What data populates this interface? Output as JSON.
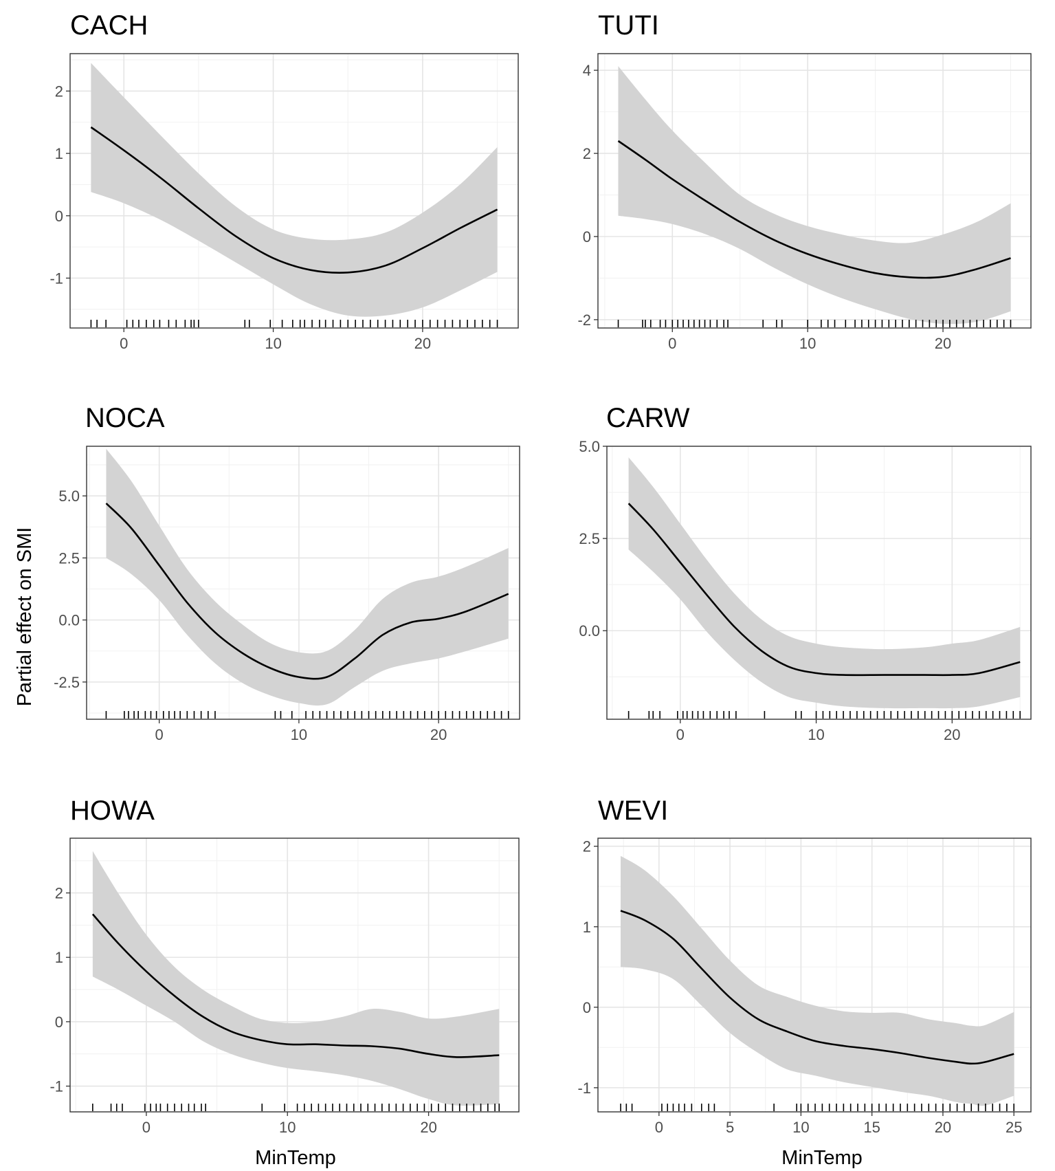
{
  "chart_data": [
    {
      "type": "line",
      "title": "CACH",
      "xlabel": "",
      "ylabel": "",
      "xlim": [
        -3.6,
        26.4
      ],
      "ylim": [
        -1.8,
        2.6
      ],
      "xticks": [
        0,
        10,
        20
      ],
      "yticks": [
        -1,
        0,
        1,
        2
      ],
      "ytick_labels": [
        "-1",
        "0",
        "1",
        "2"
      ],
      "x": [
        -2.2,
        0,
        2.5,
        5,
        7.5,
        10,
        12.5,
        15,
        17.5,
        20,
        22.5,
        25
      ],
      "fit": [
        1.42,
        1.05,
        0.6,
        0.12,
        -0.33,
        -0.68,
        -0.87,
        -0.91,
        -0.8,
        -0.52,
        -0.2,
        0.1
      ],
      "lower": [
        0.38,
        0.2,
        -0.07,
        -0.4,
        -0.75,
        -1.1,
        -1.42,
        -1.6,
        -1.6,
        -1.47,
        -1.2,
        -0.9
      ],
      "upper": [
        2.45,
        1.9,
        1.28,
        0.68,
        0.15,
        -0.22,
        -0.37,
        -0.38,
        -0.27,
        0.05,
        0.5,
        1.1
      ],
      "rug": [
        -2.2,
        -1.8,
        -1.2,
        0.2,
        0.6,
        1.0,
        1.5,
        2.0,
        2.4,
        3.0,
        3.5,
        4.1,
        4.5,
        4.7,
        5.0,
        8.1,
        8.4,
        9.8,
        10.6,
        11.3,
        11.8,
        12.1,
        12.6,
        13.1,
        13.5,
        14.0,
        14.5,
        15.0,
        15.5,
        16.0,
        16.5,
        17.0,
        17.5,
        18.0,
        18.5,
        19.0,
        19.5,
        20.0,
        20.5,
        21.0,
        21.5,
        22.0,
        22.5,
        23.0,
        23.5,
        24.0,
        24.5,
        25.0
      ]
    },
    {
      "type": "line",
      "title": "TUTI",
      "xlabel": "",
      "ylabel": "",
      "xlim": [
        -5.5,
        26.5
      ],
      "ylim": [
        -2.2,
        4.4
      ],
      "xticks": [
        0,
        10,
        20
      ],
      "yticks": [
        -2,
        0,
        2,
        4
      ],
      "ytick_labels": [
        "-2",
        "0",
        "2",
        "4"
      ],
      "x": [
        -4,
        -2,
        0,
        2.5,
        5,
        7.5,
        10,
        12.5,
        15,
        17.5,
        20,
        22.5,
        25
      ],
      "fit": [
        2.3,
        1.85,
        1.38,
        0.85,
        0.35,
        -0.08,
        -0.42,
        -0.68,
        -0.88,
        -0.98,
        -0.97,
        -0.78,
        -0.52
      ],
      "lower": [
        0.5,
        0.42,
        0.3,
        0.05,
        -0.3,
        -0.75,
        -1.15,
        -1.48,
        -1.75,
        -1.98,
        -2.1,
        -2.05,
        -1.8
      ],
      "upper": [
        4.1,
        3.3,
        2.55,
        1.75,
        1.0,
        0.55,
        0.25,
        0.05,
        -0.1,
        -0.15,
        0.05,
        0.35,
        0.8
      ],
      "rug": [
        -4.0,
        -2.2,
        -2.0,
        -1.6,
        -0.9,
        -0.5,
        0.0,
        0.4,
        0.8,
        1.2,
        1.6,
        2.0,
        2.4,
        2.8,
        3.3,
        3.8,
        4.1,
        6.7,
        7.7,
        8.1,
        10.0,
        11.0,
        11.5,
        12.0,
        12.8,
        13.5,
        14.0,
        14.5,
        15.0,
        15.5,
        16.0,
        16.5,
        17.0,
        17.5,
        18.0,
        18.5,
        19.0,
        19.5,
        20.0,
        20.5,
        21.0,
        21.5,
        22.0,
        22.5,
        23.0,
        23.5,
        24.0,
        24.5,
        25.0
      ]
    },
    {
      "type": "line",
      "title": "NOCA",
      "xlabel": "",
      "ylabel": "Partial effect on SMI",
      "xlim": [
        -5.2,
        25.8
      ],
      "ylim": [
        -4,
        7
      ],
      "xticks": [
        0,
        10,
        20
      ],
      "yticks": [
        -2.5,
        0,
        2.5,
        5
      ],
      "ytick_labels": [
        "-2.5",
        "0.0",
        "2.5",
        "5.0"
      ],
      "x": [
        -3.8,
        -2,
        0,
        2,
        4,
        6,
        8,
        10,
        12,
        14,
        16,
        18,
        20,
        22,
        25
      ],
      "fit": [
        4.7,
        3.7,
        2.2,
        0.7,
        -0.5,
        -1.35,
        -1.95,
        -2.3,
        -2.3,
        -1.55,
        -0.6,
        -0.1,
        0.05,
        0.35,
        1.05
      ],
      "lower": [
        2.5,
        1.85,
        0.8,
        -0.6,
        -1.75,
        -2.55,
        -3.05,
        -3.35,
        -3.4,
        -2.7,
        -2.05,
        -1.75,
        -1.55,
        -1.25,
        -0.75
      ],
      "upper": [
        6.9,
        5.6,
        3.8,
        2.05,
        0.75,
        -0.2,
        -0.95,
        -1.3,
        -1.25,
        -0.4,
        0.85,
        1.5,
        1.75,
        2.15,
        2.9
      ],
      "rug": [
        -3.8,
        -2.5,
        -2.2,
        -1.8,
        -1.5,
        -1.0,
        -0.6,
        -0.2,
        0.3,
        0.7,
        1.1,
        1.5,
        2.0,
        2.5,
        3.0,
        3.5,
        4.0,
        8.3,
        8.7,
        9.5,
        10.5,
        11.0,
        11.5,
        12.0,
        12.5,
        13.0,
        13.5,
        14.0,
        14.5,
        15.0,
        15.5,
        16.0,
        16.5,
        17.0,
        17.5,
        18.0,
        18.5,
        19.0,
        19.5,
        20.0,
        20.5,
        21.0,
        21.5,
        22.0,
        22.5,
        23.0,
        23.5,
        24.0,
        24.5,
        25.0
      ]
    },
    {
      "type": "line",
      "title": "CARW",
      "xlabel": "",
      "ylabel": "",
      "xlim": [
        -5.4,
        25.8
      ],
      "ylim": [
        -2.4,
        5
      ],
      "xticks": [
        0,
        10,
        20
      ],
      "yticks": [
        0,
        2.5,
        5
      ],
      "ytick_labels": [
        "0.0",
        "2.5",
        "5.0"
      ],
      "x": [
        -3.8,
        -2,
        0,
        2,
        4,
        6,
        8,
        10,
        12,
        15,
        18,
        20,
        22,
        25
      ],
      "fit": [
        3.45,
        2.75,
        1.85,
        0.95,
        0.1,
        -0.55,
        -0.98,
        -1.15,
        -1.2,
        -1.2,
        -1.2,
        -1.2,
        -1.15,
        -0.85
      ],
      "lower": [
        2.2,
        1.6,
        0.85,
        -0.05,
        -0.8,
        -1.4,
        -1.8,
        -1.95,
        -2.05,
        -2.1,
        -2.1,
        -2.1,
        -2.05,
        -1.8
      ],
      "upper": [
        4.7,
        3.9,
        2.9,
        1.9,
        1.0,
        0.3,
        -0.15,
        -0.35,
        -0.45,
        -0.5,
        -0.45,
        -0.35,
        -0.25,
        0.1
      ],
      "rug": [
        -3.8,
        -2.3,
        -2.0,
        -1.5,
        -0.2,
        0.2,
        0.5,
        0.9,
        1.3,
        1.7,
        2.2,
        2.7,
        3.2,
        3.6,
        4.1,
        6.2,
        8.5,
        8.9,
        10.0,
        10.5,
        11.0,
        11.5,
        12.0,
        12.5,
        13.0,
        13.5,
        14.0,
        14.5,
        15.0,
        15.5,
        16.0,
        16.5,
        17.0,
        17.5,
        18.0,
        18.5,
        19.0,
        19.5,
        20.0,
        20.5,
        21.0,
        21.5,
        22.0,
        22.5,
        23.0,
        23.5,
        24.0,
        24.5,
        25.0
      ]
    },
    {
      "type": "line",
      "title": "HOWA",
      "xlabel": "MinTemp",
      "ylabel": "",
      "xlim": [
        -5.4,
        26.4
      ],
      "ylim": [
        -1.4,
        2.85
      ],
      "xticks": [
        0,
        10,
        20
      ],
      "yticks": [
        -1,
        0,
        1,
        2
      ],
      "ytick_labels": [
        "-1",
        "0",
        "1",
        "2"
      ],
      "x": [
        -3.8,
        -2,
        0,
        2,
        4,
        6,
        8,
        10,
        12,
        14,
        16,
        18,
        20,
        22,
        25
      ],
      "fit": [
        1.67,
        1.22,
        0.78,
        0.4,
        0.08,
        -0.15,
        -0.28,
        -0.35,
        -0.35,
        -0.37,
        -0.38,
        -0.42,
        -0.5,
        -0.55,
        -0.52
      ],
      "lower": [
        0.7,
        0.5,
        0.25,
        0.0,
        -0.3,
        -0.5,
        -0.63,
        -0.72,
        -0.77,
        -0.83,
        -0.92,
        -1.05,
        -1.2,
        -1.3,
        -1.28
      ],
      "upper": [
        2.65,
        2.0,
        1.35,
        0.85,
        0.5,
        0.25,
        0.05,
        -0.02,
        0.0,
        0.08,
        0.2,
        0.15,
        0.05,
        0.08,
        0.2
      ],
      "rug": [
        -3.8,
        -2.5,
        -2.1,
        -1.7,
        -0.1,
        0.3,
        0.7,
        1.0,
        1.5,
        2.0,
        2.5,
        3.0,
        3.4,
        3.9,
        4.2,
        8.2,
        9.8,
        10.7,
        11.2,
        11.7,
        12.2,
        12.7,
        13.2,
        13.7,
        14.2,
        14.7,
        15.2,
        15.7,
        16.2,
        16.7,
        17.2,
        17.7,
        18.2,
        18.7,
        19.2,
        19.7,
        20.2,
        20.7,
        21.2,
        21.7,
        22.2,
        22.7,
        23.2,
        23.7,
        24.2,
        24.7,
        25.0
      ]
    },
    {
      "type": "line",
      "title": "WEVI",
      "xlabel": "MinTemp",
      "ylabel": "",
      "xlim": [
        -4.3,
        26.2
      ],
      "ylim": [
        -1.3,
        2.1
      ],
      "xticks": [
        0,
        5,
        10,
        15,
        20,
        25
      ],
      "yticks": [
        -1,
        0,
        1,
        2
      ],
      "ytick_labels": [
        "-1",
        "0",
        "1",
        "2"
      ],
      "x": [
        -2.7,
        -1,
        1,
        3,
        5,
        7,
        9,
        11,
        13,
        15,
        17,
        19,
        21,
        22,
        23,
        25
      ],
      "fit": [
        1.2,
        1.08,
        0.85,
        0.48,
        0.12,
        -0.15,
        -0.3,
        -0.42,
        -0.48,
        -0.52,
        -0.57,
        -0.63,
        -0.68,
        -0.7,
        -0.68,
        -0.58
      ],
      "lower": [
        0.5,
        0.47,
        0.35,
        0.02,
        -0.32,
        -0.57,
        -0.77,
        -0.85,
        -0.93,
        -0.99,
        -1.05,
        -1.1,
        -1.18,
        -1.2,
        -1.22,
        -1.1
      ],
      "upper": [
        1.88,
        1.7,
        1.38,
        0.98,
        0.58,
        0.27,
        0.13,
        0.02,
        -0.05,
        -0.07,
        -0.07,
        -0.15,
        -0.2,
        -0.23,
        -0.22,
        -0.06
      ],
      "rug": [
        -2.7,
        -2.3,
        -1.9,
        0.2,
        0.6,
        1.0,
        1.4,
        1.8,
        2.3,
        3.0,
        3.5,
        3.9,
        8.1,
        9.7,
        10.0,
        10.5,
        11.0,
        11.5,
        12.0,
        12.5,
        13.0,
        13.5,
        14.0,
        14.5,
        15.0,
        15.5,
        16.0,
        16.5,
        17.0,
        17.5,
        18.0,
        18.5,
        19.0,
        19.5,
        20.0,
        20.5,
        21.0,
        21.5,
        22.0,
        22.5,
        23.0,
        23.5,
        24.0,
        24.5,
        25.0
      ]
    }
  ]
}
